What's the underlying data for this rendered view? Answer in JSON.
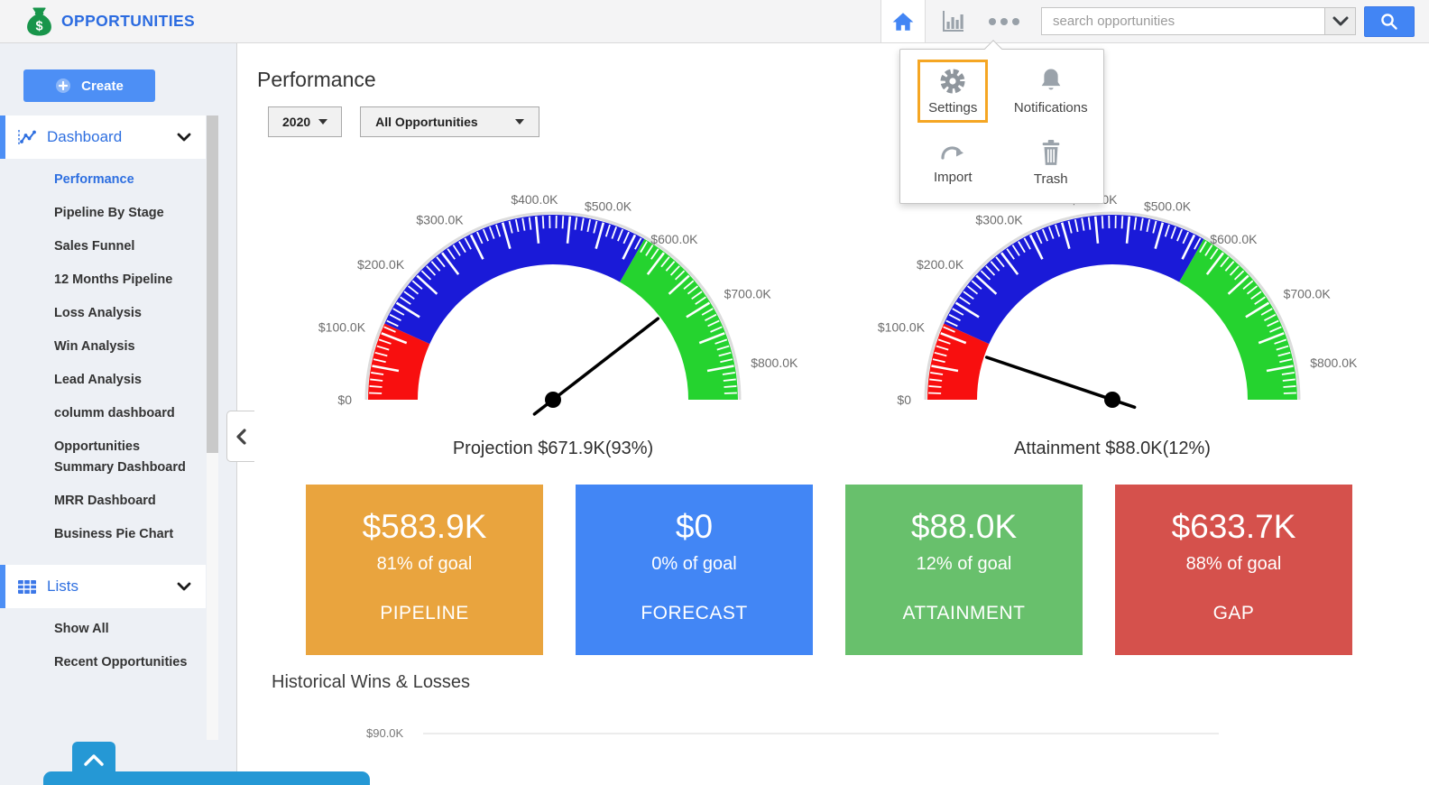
{
  "header": {
    "app_title": "OPPORTUNITIES",
    "search": {
      "placeholder": "search opportunities"
    },
    "icons": [
      "money-bag",
      "home",
      "bar-chart",
      "more-options",
      "search"
    ]
  },
  "menu_popup": {
    "highlight_color": "#f5a623",
    "items": [
      {
        "label": "Settings",
        "icon": "gear-icon",
        "highlighted": true
      },
      {
        "label": "Notifications",
        "icon": "bell-icon",
        "highlighted": false
      },
      {
        "label": "Import",
        "icon": "import-arrow-icon",
        "highlighted": false
      },
      {
        "label": "Trash",
        "icon": "trash-icon",
        "highlighted": false
      }
    ]
  },
  "sidebar": {
    "create_label": "Create",
    "sections": [
      {
        "label": "Dashboard",
        "icon": "line-chart-icon",
        "active_item": "Performance",
        "items": [
          "Performance",
          "Pipeline By Stage",
          "Sales Funnel",
          "12 Months Pipeline",
          "Loss Analysis",
          "Win Analysis",
          "Lead Analysis",
          "columm dashboard",
          "Opportunities Summary Dashboard",
          "MRR Dashboard",
          "Business Pie Chart"
        ]
      },
      {
        "label": "Lists",
        "icon": "grid-icon",
        "items": [
          "Show All",
          "Recent Opportunities"
        ]
      }
    ]
  },
  "main": {
    "title": "Performance",
    "filters": {
      "year_value": "2020",
      "scope_value": "All Opportunities"
    },
    "accent_color": "#2e6fe0",
    "kpi_cards": [
      {
        "value": "$583.9K",
        "goal": "81% of goal",
        "name": "PIPELINE",
        "color": "#e9a43e"
      },
      {
        "value": "$0",
        "goal": "0% of goal",
        "name": "FORECAST",
        "color": "#4286f5"
      },
      {
        "value": "$88.0K",
        "goal": "12% of goal",
        "name": "ATTAINMENT",
        "color": "#68c06c"
      },
      {
        "value": "$633.7K",
        "goal": "88% of goal",
        "name": "GAP",
        "color": "#d5514c"
      }
    ]
  },
  "chart_data": [
    {
      "type": "gauge",
      "title": "Projection $671.9K(93%)",
      "metric": "Projection",
      "value": 671900,
      "percent_of_goal": 93,
      "min": 0,
      "max": 850000,
      "minor_step": 10000,
      "major_step": 50000,
      "ticks": [
        {
          "v": 0,
          "label": "$0"
        },
        {
          "v": 100000,
          "label": "$100.0K"
        },
        {
          "v": 200000,
          "label": "$200.0K"
        },
        {
          "v": 300000,
          "label": "$300.0K"
        },
        {
          "v": 400000,
          "label": "$400.0K"
        },
        {
          "v": 500000,
          "label": "$500.0K"
        },
        {
          "v": 600000,
          "label": "$600.0K"
        },
        {
          "v": 700000,
          "label": "$700.0K"
        },
        {
          "v": 800000,
          "label": "$800.0K"
        }
      ],
      "bands": [
        {
          "from": 0,
          "to": 115000,
          "color": "#f80f0f"
        },
        {
          "from": 115000,
          "to": 565000,
          "color": "#1a1ad8"
        },
        {
          "from": 565000,
          "to": 850000,
          "color": "#25d32f"
        }
      ]
    },
    {
      "type": "gauge",
      "title": "Attainment $88.0K(12%)",
      "metric": "Attainment",
      "value": 88000,
      "percent_of_goal": 12,
      "min": 0,
      "max": 850000,
      "minor_step": 10000,
      "major_step": 50000,
      "ticks": [
        {
          "v": 0,
          "label": "$0"
        },
        {
          "v": 100000,
          "label": "$100.0K"
        },
        {
          "v": 200000,
          "label": "$200.0K"
        },
        {
          "v": 300000,
          "label": "$300.0K"
        },
        {
          "v": 400000,
          "label": "$400.0K"
        },
        {
          "v": 500000,
          "label": "$500.0K"
        },
        {
          "v": 600000,
          "label": "$600.0K"
        },
        {
          "v": 700000,
          "label": "$700.0K"
        },
        {
          "v": 800000,
          "label": "$800.0K"
        }
      ],
      "bands": [
        {
          "from": 0,
          "to": 115000,
          "color": "#f80f0f"
        },
        {
          "from": 115000,
          "to": 565000,
          "color": "#1a1ad8"
        },
        {
          "from": 565000,
          "to": 850000,
          "color": "#25d32f"
        }
      ]
    },
    {
      "type": "line",
      "title": "Historical Wins & Losses",
      "y_ticks": [
        "$90.0K"
      ]
    }
  ]
}
